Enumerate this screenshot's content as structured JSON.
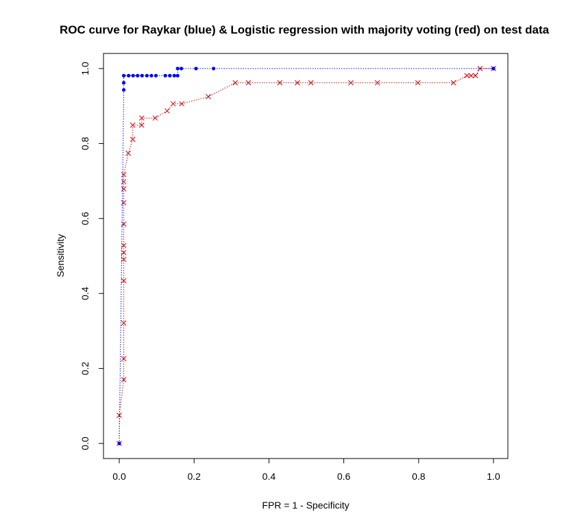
{
  "chart_data": {
    "type": "line",
    "title": "ROC curve for Raykar (blue) & Logistic regression with majority voting (red) on test data",
    "xlabel": "FPR = 1 - Specificity",
    "ylabel": "Sensitivity",
    "xlim": [
      0,
      1
    ],
    "ylim": [
      0,
      1
    ],
    "x_ticks": [
      "0.0",
      "0.2",
      "0.4",
      "0.6",
      "0.8",
      "1.0"
    ],
    "y_ticks": [
      "0.0",
      "0.2",
      "0.4",
      "0.6",
      "0.8",
      "1.0"
    ],
    "grid": false,
    "legend": "none",
    "series": [
      {
        "color": "#0000ff",
        "marker": "filled-circle",
        "line": "dotted",
        "points": [
          [
            0.0,
            0.0
          ],
          [
            0.012,
            0.943
          ],
          [
            0.012,
            0.962
          ],
          [
            0.012,
            0.981
          ],
          [
            0.025,
            0.981
          ],
          [
            0.037,
            0.981
          ],
          [
            0.049,
            0.981
          ],
          [
            0.061,
            0.981
          ],
          [
            0.074,
            0.981
          ],
          [
            0.086,
            0.981
          ],
          [
            0.098,
            0.981
          ],
          [
            0.123,
            0.981
          ],
          [
            0.135,
            0.981
          ],
          [
            0.147,
            0.981
          ],
          [
            0.156,
            0.981
          ],
          [
            0.156,
            1.0
          ],
          [
            0.166,
            1.0
          ],
          [
            0.205,
            1.0
          ],
          [
            0.252,
            1.0
          ],
          [
            1.0,
            1.0
          ]
        ]
      },
      {
        "color": "#cc0000",
        "marker": "cross",
        "line": "dotted",
        "points": [
          [
            0.0,
            0.0
          ],
          [
            0.0,
            0.075
          ],
          [
            0.012,
            0.17
          ],
          [
            0.012,
            0.226
          ],
          [
            0.012,
            0.321
          ],
          [
            0.012,
            0.434
          ],
          [
            0.012,
            0.491
          ],
          [
            0.012,
            0.509
          ],
          [
            0.012,
            0.528
          ],
          [
            0.012,
            0.585
          ],
          [
            0.012,
            0.642
          ],
          [
            0.012,
            0.679
          ],
          [
            0.012,
            0.698
          ],
          [
            0.012,
            0.717
          ],
          [
            0.024,
            0.774
          ],
          [
            0.036,
            0.811
          ],
          [
            0.036,
            0.849
          ],
          [
            0.06,
            0.849
          ],
          [
            0.06,
            0.868
          ],
          [
            0.096,
            0.868
          ],
          [
            0.128,
            0.887
          ],
          [
            0.144,
            0.906
          ],
          [
            0.167,
            0.906
          ],
          [
            0.238,
            0.925
          ],
          [
            0.31,
            0.962
          ],
          [
            0.345,
            0.962
          ],
          [
            0.429,
            0.962
          ],
          [
            0.476,
            0.962
          ],
          [
            0.512,
            0.962
          ],
          [
            0.619,
            0.962
          ],
          [
            0.69,
            0.962
          ],
          [
            0.798,
            0.962
          ],
          [
            0.893,
            0.962
          ],
          [
            0.929,
            0.981
          ],
          [
            0.94,
            0.981
          ],
          [
            0.952,
            0.981
          ],
          [
            0.964,
            1.0
          ],
          [
            1.0,
            1.0
          ]
        ]
      }
    ]
  }
}
